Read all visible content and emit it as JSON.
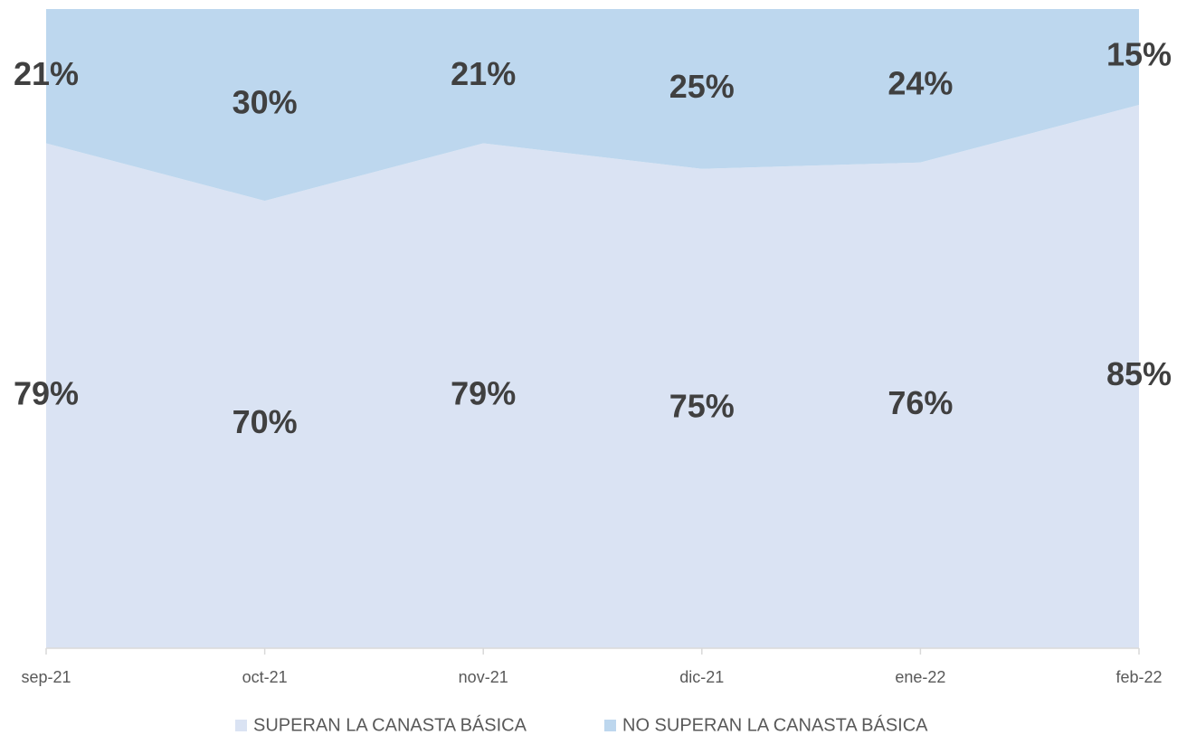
{
  "chart_data": {
    "type": "stacked_area",
    "categories": [
      "sep-21",
      "oct-21",
      "nov-21",
      "dic-21",
      "ene-22",
      "feb-22"
    ],
    "series": [
      {
        "name": "SUPERAN LA CANASTA BÁSICA",
        "color": "#dae3f3",
        "values": [
          79,
          70,
          79,
          75,
          76,
          85
        ],
        "value_labels": [
          "79%",
          "70%",
          "79%",
          "75%",
          "76%",
          "85%"
        ]
      },
      {
        "name": "NO SUPERAN LA CANASTA BÁSICA",
        "color": "#bdd7ee",
        "values": [
          21,
          30,
          21,
          25,
          24,
          15
        ],
        "value_labels": [
          "21%",
          "30%",
          "21%",
          "25%",
          "24%",
          "15%"
        ]
      }
    ],
    "ylim": [
      0,
      100
    ]
  }
}
